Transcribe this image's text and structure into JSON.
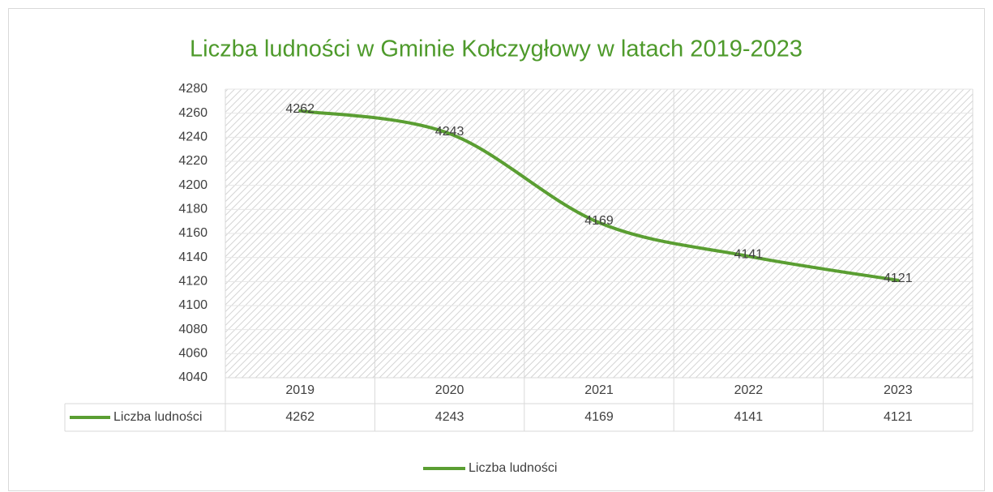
{
  "chart_data": {
    "type": "line",
    "title": "Liczba ludności w Gminie Kołczygłowy w latach 2019-2023",
    "categories": [
      "2019",
      "2020",
      "2021",
      "2022",
      "2023"
    ],
    "series": [
      {
        "name": "Liczba ludności",
        "color": "#5a9e32",
        "values": [
          4262,
          4243,
          4169,
          4141,
          4121
        ]
      }
    ],
    "ylim": [
      4040,
      4280
    ],
    "yticks": [
      4040,
      4060,
      4080,
      4100,
      4120,
      4140,
      4160,
      4180,
      4200,
      4220,
      4240,
      4260,
      4280
    ],
    "grid": true,
    "data_table": true,
    "legend": "bottom",
    "data_labels": true
  }
}
